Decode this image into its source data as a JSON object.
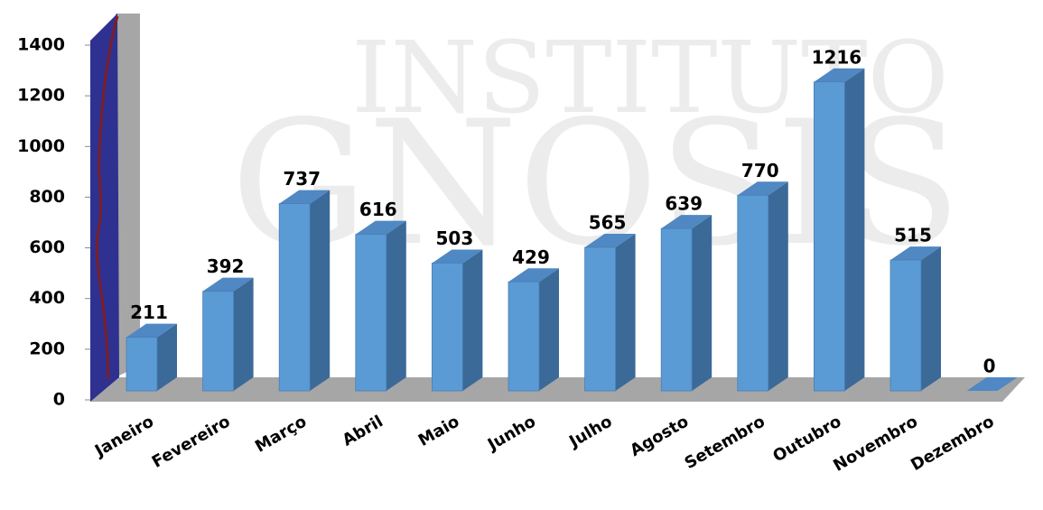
{
  "chart_data": {
    "type": "bar3d",
    "watermark": [
      "INSTITUTO",
      "GNOSIS"
    ],
    "categories": [
      "Janeiro",
      "Fevereiro",
      "Março",
      "Abril",
      "Maio",
      "Junho",
      "Julho",
      "Agosto",
      "Setembro",
      "Outubro",
      "Novembro",
      "Dezembro"
    ],
    "values": [
      211,
      392,
      737,
      616,
      503,
      429,
      565,
      639,
      770,
      1216,
      515,
      0
    ],
    "color": "#5b9bd5",
    "side_color": "#3b6a98",
    "top_color": "#4f88c3",
    "ylim": [
      0,
      1400
    ],
    "yticks": [
      0,
      200,
      400,
      600,
      800,
      1000,
      1200,
      1400
    ]
  }
}
